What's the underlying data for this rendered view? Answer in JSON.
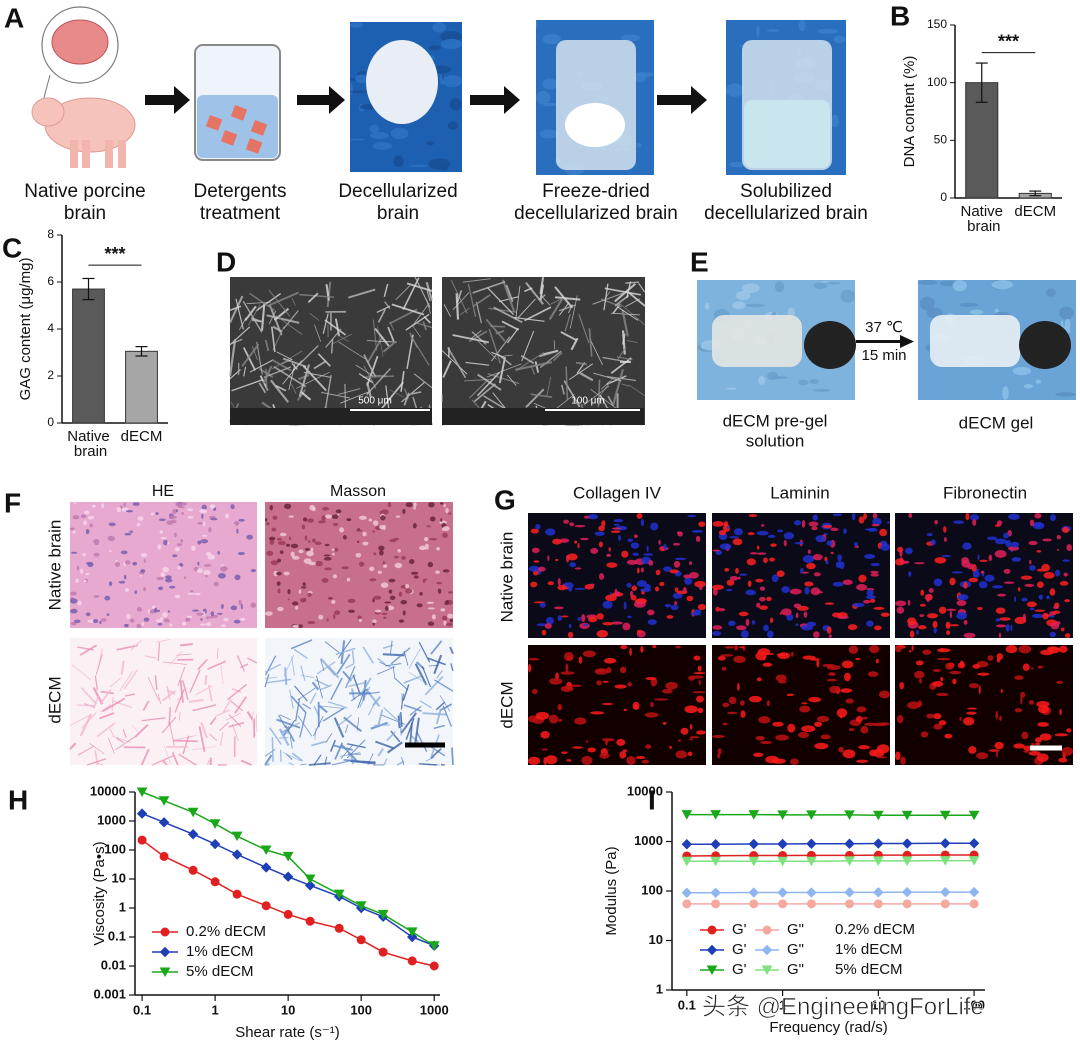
{
  "figure": {
    "A": {
      "label": "A",
      "captions": [
        [
          "Native porcine",
          "brain"
        ],
        [
          "Detergents",
          "treatment"
        ],
        [
          "Decellularized",
          "brain"
        ],
        [
          "Freeze-dried",
          "decellularized brain"
        ],
        [
          "Solubilized",
          "decellularized brain"
        ]
      ]
    },
    "D": {
      "label": "D",
      "scale_bars": [
        "500 μm",
        "100 μm"
      ]
    },
    "E": {
      "label": "E",
      "condition": [
        "37 ℃",
        "15 min"
      ],
      "captions": [
        [
          "dECM pre-gel",
          "solution"
        ],
        [
          "dECM gel"
        ]
      ]
    },
    "F": {
      "label": "F",
      "columns": [
        "HE",
        "Masson"
      ],
      "rows": [
        "Native brain",
        "dECM"
      ]
    },
    "G": {
      "label": "G",
      "columns": [
        "Collagen IV",
        "Laminin",
        "Fibronectin"
      ],
      "rows": [
        "Native brain",
        "dECM"
      ]
    },
    "watermark": "头条 @EngineeringForLife"
  },
  "chart_data": [
    {
      "type": "bar",
      "panel_label": "B",
      "ylabel": "DNA content (%)",
      "categories": [
        "Native brain",
        "dECM"
      ],
      "values": [
        100,
        4
      ],
      "errors": [
        17,
        2
      ],
      "colors": [
        "#5a5a5a",
        "#a6a6a6"
      ],
      "ylim": [
        0,
        150
      ],
      "yticks": [
        0,
        50,
        100,
        150
      ],
      "annotation": "***"
    },
    {
      "type": "bar",
      "panel_label": "C",
      "ylabel": "GAG content (μg/mg)",
      "categories": [
        "Native brain",
        "dECM"
      ],
      "values": [
        5.7,
        3.05
      ],
      "errors": [
        0.45,
        0.2
      ],
      "colors": [
        "#5a5a5a",
        "#a6a6a6"
      ],
      "ylim": [
        0,
        8
      ],
      "yticks": [
        0,
        2,
        4,
        6,
        8
      ],
      "annotation": "***"
    },
    {
      "type": "line",
      "panel_label": "H",
      "xlabel": "Shear rate (s⁻¹)",
      "ylabel": "Viscosity (Pa•s)",
      "log_x": true,
      "log_y": true,
      "legend": "lower left",
      "x": [
        0.1,
        0.2,
        0.5,
        1,
        2,
        5,
        10,
        20,
        50,
        100,
        200,
        500,
        1000
      ],
      "xlim": [
        0.08,
        1200
      ],
      "ylim": [
        0.001,
        10000
      ],
      "xticks": [
        0.1,
        1,
        10,
        100,
        1000
      ],
      "yticks": [
        0.001,
        0.01,
        0.1,
        1,
        10,
        100,
        1000,
        10000
      ],
      "series": [
        {
          "name": "0.2% dECM",
          "color": "#e02020",
          "marker": "circle",
          "values": [
            220,
            60,
            20,
            8,
            3,
            1.2,
            0.6,
            0.35,
            0.2,
            0.08,
            0.03,
            0.015,
            0.01
          ]
        },
        {
          "name": "1% dECM",
          "color": "#1f3fb8",
          "marker": "diamond",
          "values": [
            1800,
            900,
            350,
            160,
            70,
            25,
            12,
            6,
            2.5,
            1,
            0.5,
            0.1,
            0.05
          ]
        },
        {
          "name": "5% dECM",
          "color": "#1aa81a",
          "marker": "triangle",
          "values": [
            10000,
            5000,
            2000,
            800,
            300,
            100,
            60,
            10,
            3,
            1.2,
            0.6,
            0.15,
            0.05
          ]
        }
      ]
    },
    {
      "type": "line",
      "panel_label": "I",
      "xlabel": "Frequency (rad/s)",
      "ylabel": "Modulus (Pa)",
      "log_x": true,
      "log_y": true,
      "legend": "lower left",
      "x": [
        0.1,
        0.2,
        0.5,
        1,
        2,
        5,
        10,
        20,
        50,
        100
      ],
      "xlim": [
        0.07,
        130
      ],
      "ylim": [
        1,
        10000
      ],
      "xticks": [
        0.1,
        1,
        10,
        100
      ],
      "yticks": [
        1,
        10,
        100,
        1000,
        10000
      ],
      "legend_rows": [
        "0.2% dECM",
        "1% dECM",
        "5% dECM"
      ],
      "series": [
        {
          "name": "G'",
          "color": "#e02020",
          "marker": "circle",
          "values": [
            510,
            515,
            520,
            520,
            525,
            525,
            530,
            530,
            535,
            535
          ]
        },
        {
          "name": "G\"",
          "color": "#f4a9a0",
          "marker": "circle",
          "values": [
            55,
            55,
            55,
            55,
            55,
            55,
            55,
            55,
            55,
            55
          ]
        },
        {
          "name": "G'",
          "color": "#1f3fb8",
          "marker": "diamond",
          "values": [
            880,
            880,
            890,
            890,
            900,
            900,
            910,
            910,
            920,
            920
          ]
        },
        {
          "name": "G\"",
          "color": "#8fb6f0",
          "marker": "diamond",
          "values": [
            92,
            92,
            93,
            93,
            93,
            94,
            94,
            95,
            95,
            95
          ]
        },
        {
          "name": "G'",
          "color": "#1aa81a",
          "marker": "triangle",
          "values": [
            3500,
            3500,
            3500,
            3450,
            3450,
            3450,
            3400,
            3400,
            3400,
            3400
          ]
        },
        {
          "name": "G\"",
          "color": "#7fe07f",
          "marker": "triangle",
          "values": [
            400,
            400,
            400,
            400,
            400,
            405,
            405,
            405,
            410,
            410
          ]
        }
      ]
    }
  ]
}
